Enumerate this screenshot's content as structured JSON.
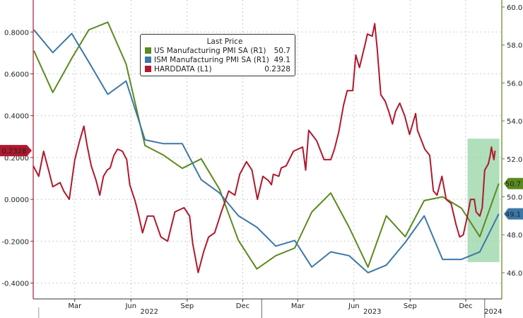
{
  "chart_data": {
    "type": "line",
    "title": "",
    "legend": {
      "title": "Last Price",
      "placement": "top-center",
      "entries": [
        {
          "name": "US Manufacturing PMI SA  (R1)",
          "last": "50.7",
          "color": "#5b8a1e"
        },
        {
          "name": "ISM Manufacturing PMI SA  (R1)",
          "last": "49.1",
          "color": "#3b78a8"
        },
        {
          "name": "HARDDATA  (L1)",
          "last": "0.2328",
          "color": "#b0182e"
        }
      ]
    },
    "left_axis": {
      "ticks": [
        "0.8000",
        "0.6000",
        "0.4000",
        "0.2000",
        "0.0000",
        "-0.2000",
        "-0.4000"
      ],
      "values": [
        0.8,
        0.6,
        0.4,
        0.2,
        0,
        -0.2,
        -0.4
      ],
      "range": [
        -0.476,
        0.953
      ]
    },
    "right_axis": {
      "ticks": [
        "60.0",
        "58.0",
        "56.0",
        "54.0",
        "52.0",
        "50.0",
        "48.0",
        "46.0"
      ],
      "values": [
        60,
        58,
        56,
        54,
        52,
        50,
        48,
        46
      ],
      "range": [
        44.62,
        60.37
      ]
    },
    "x_axis": {
      "range": [
        "2021-12-23",
        "2024-01-29"
      ],
      "month_ticks": [
        {
          "label": "Mar",
          "date": "2022-03-01"
        },
        {
          "label": "Jun",
          "date": "2022-06-01"
        },
        {
          "label": "Sep",
          "date": "2022-09-01"
        },
        {
          "label": "Dec",
          "date": "2022-12-01"
        },
        {
          "label": "Mar",
          "date": "2023-03-01"
        },
        {
          "label": "Jun",
          "date": "2023-06-01"
        },
        {
          "label": "Sep",
          "date": "2023-09-01"
        },
        {
          "label": "Dec",
          "date": "2023-12-01"
        }
      ],
      "years": [
        {
          "label": "2022",
          "date": "2022-07-01"
        },
        {
          "label": "2023",
          "date": "2023-07-01"
        },
        {
          "label": "2024",
          "date": "2024-01-15"
        }
      ]
    },
    "grid": true,
    "highlight": {
      "from": "2023-12-04",
      "to": "2024-01-25",
      "color": "#8fd19e"
    },
    "tags": [
      {
        "text": "0.2328",
        "axis": "left",
        "value": 0.2328,
        "color": "#b0182e"
      },
      {
        "text": "50.7",
        "axis": "right",
        "value": 50.7,
        "color": "#5b8a1e"
      },
      {
        "text": "49.1",
        "axis": "right",
        "value": 49.1,
        "color": "#3b78a8"
      }
    ],
    "series": [
      {
        "name": "US Manufacturing PMI SA  (R1)",
        "axis": "right",
        "color": "#5b8a1e",
        "x": [
          "2021-12",
          "2022-01",
          "2022-02",
          "2022-03",
          "2022-04",
          "2022-05",
          "2022-06",
          "2022-07",
          "2022-08",
          "2022-09",
          "2022-10",
          "2022-11",
          "2022-12",
          "2023-01",
          "2023-02",
          "2023-03",
          "2023-04",
          "2023-05",
          "2023-06",
          "2023-07",
          "2023-08",
          "2023-09",
          "2023-10",
          "2023-11",
          "2023-12",
          "2024-01"
        ],
        "values": [
          57.7,
          55.5,
          57.3,
          58.8,
          59.2,
          57.0,
          52.7,
          52.2,
          51.5,
          52.0,
          50.4,
          47.7,
          46.2,
          46.9,
          47.3,
          49.2,
          50.2,
          48.4,
          46.3,
          49.0,
          47.9,
          49.8,
          50.0,
          49.4,
          47.9,
          50.7
        ]
      },
      {
        "name": "ISM Manufacturing PMI SA  (R1)",
        "axis": "right",
        "color": "#3b78a8",
        "x": [
          "2021-12",
          "2022-01",
          "2022-02",
          "2022-03",
          "2022-04",
          "2022-05",
          "2022-06",
          "2022-07",
          "2022-08",
          "2022-09",
          "2022-10",
          "2022-11",
          "2022-12",
          "2023-01",
          "2023-02",
          "2023-03",
          "2023-04",
          "2023-05",
          "2023-06",
          "2023-07",
          "2023-08",
          "2023-09",
          "2023-10",
          "2023-11",
          "2023-12",
          "2024-01"
        ],
        "values": [
          58.8,
          57.6,
          58.6,
          57.1,
          55.4,
          56.1,
          53.0,
          52.8,
          52.8,
          50.9,
          50.2,
          49.0,
          48.4,
          47.4,
          47.7,
          46.3,
          47.1,
          46.9,
          46.0,
          46.4,
          47.6,
          49.0,
          46.7,
          46.7,
          47.1,
          49.1
        ]
      },
      {
        "name": "HARDDATA  (L1)",
        "axis": "left",
        "color": "#b0182e",
        "x": [
          "2021-12-23",
          "2022-01-01",
          "2022-01-09",
          "2022-01-19",
          "2022-01-24",
          "2022-02-05",
          "2022-02-11",
          "2022-02-20",
          "2022-03-01",
          "2022-03-09",
          "2022-03-16",
          "2022-03-21",
          "2022-03-28",
          "2022-04-05",
          "2022-04-11",
          "2022-04-17",
          "2022-04-23",
          "2022-04-28",
          "2022-05-04",
          "2022-05-10",
          "2022-05-18",
          "2022-05-25",
          "2022-05-30",
          "2022-06-08",
          "2022-06-14",
          "2022-06-20",
          "2022-06-28",
          "2022-07-08",
          "2022-07-20",
          "2022-07-31",
          "2022-08-12",
          "2022-08-27",
          "2022-09-05",
          "2022-09-10",
          "2022-09-19",
          "2022-09-28",
          "2022-10-06",
          "2022-10-16",
          "2022-10-27",
          "2022-11-08",
          "2022-11-18",
          "2022-11-26",
          "2022-12-07",
          "2022-12-16",
          "2022-12-25",
          "2023-01-03",
          "2023-01-12",
          "2023-01-17",
          "2023-01-20",
          "2023-01-29",
          "2023-02-02",
          "2023-02-10",
          "2023-02-22",
          "2023-03-09",
          "2023-03-14",
          "2023-03-19",
          "2023-04-01",
          "2023-04-13",
          "2023-04-24",
          "2023-04-30",
          "2023-05-07",
          "2023-05-15",
          "2023-05-21",
          "2023-05-30",
          "2023-06-04",
          "2023-06-10",
          "2023-06-20",
          "2023-06-23",
          "2023-07-01",
          "2023-07-05",
          "2023-07-09",
          "2023-07-15",
          "2023-07-22",
          "2023-07-28",
          "2023-08-03",
          "2023-08-08",
          "2023-08-15",
          "2023-08-23",
          "2023-08-31",
          "2023-09-10",
          "2023-09-13",
          "2023-09-25",
          "2023-10-03",
          "2023-10-09",
          "2023-10-15",
          "2023-10-23",
          "2023-10-30",
          "2023-11-07",
          "2023-11-15",
          "2023-11-21",
          "2023-11-27",
          "2023-12-03",
          "2023-12-09",
          "2023-12-15",
          "2023-12-18",
          "2023-12-24",
          "2023-12-28",
          "2024-01-01",
          "2024-01-07",
          "2024-01-10",
          "2024-01-12",
          "2024-01-16",
          "2024-01-18"
        ],
        "values": [
          0.16,
          0.11,
          0.23,
          0.12,
          0.06,
          0.08,
          0.04,
          0.0,
          0.19,
          0.28,
          0.35,
          0.26,
          0.16,
          0.09,
          0.02,
          0.11,
          0.14,
          0.15,
          0.21,
          0.24,
          0.23,
          0.19,
          0.07,
          -0.01,
          -0.08,
          -0.16,
          -0.08,
          -0.08,
          -0.18,
          -0.2,
          -0.06,
          -0.04,
          -0.08,
          -0.21,
          -0.35,
          -0.25,
          -0.18,
          -0.16,
          -0.06,
          0.04,
          0.02,
          0.12,
          0.18,
          0.14,
          0.0,
          0.11,
          0.09,
          0.07,
          0.12,
          0.11,
          0.15,
          0.16,
          0.23,
          0.25,
          0.14,
          0.33,
          0.28,
          0.19,
          0.19,
          0.24,
          0.32,
          0.45,
          0.52,
          0.52,
          0.69,
          0.63,
          0.75,
          0.79,
          0.78,
          0.84,
          0.72,
          0.5,
          0.47,
          0.42,
          0.36,
          0.42,
          0.46,
          0.4,
          0.31,
          0.41,
          0.33,
          0.24,
          0.21,
          0.04,
          0.02,
          0.11,
          0.0,
          -0.02,
          -0.12,
          -0.18,
          -0.17,
          -0.09,
          0.0,
          0.0,
          -0.06,
          -0.08,
          -0.04,
          0.14,
          0.17,
          0.21,
          0.25,
          0.19,
          0.2328
        ]
      }
    ]
  }
}
